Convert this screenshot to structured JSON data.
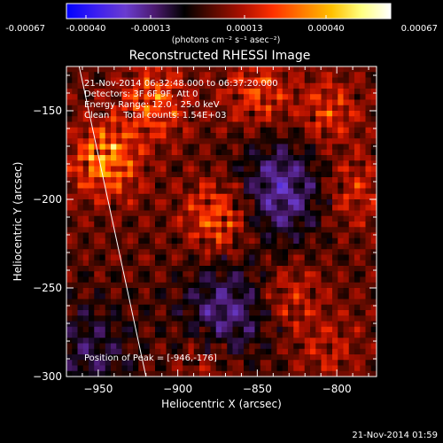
{
  "colorbar": {
    "ticks": [
      "-0.00067",
      "-0.00040",
      "-0.00013",
      "0.00013",
      "0.00040",
      "0.00067"
    ],
    "unit_label": "(photons cm⁻² s⁻¹ asec⁻²)",
    "stops": [
      "#0000ff",
      "#3b1ef0",
      "#6a3cd0",
      "#4b1a6e",
      "#000000",
      "#5a0a00",
      "#b01000",
      "#ff3000",
      "#ff7a00",
      "#ffc000",
      "#ffff80",
      "#ffffff"
    ],
    "range": [
      -0.00067,
      0.00067
    ]
  },
  "chart_data": {
    "type": "heatmap",
    "title": "Reconstructed RHESSI Image",
    "xlabel": "Heliocentric X (arcsec)",
    "ylabel": "Heliocentric Y (arcsec)",
    "xlim": [
      -970,
      -775
    ],
    "ylim": [
      -300,
      -125
    ],
    "x_ticks": [
      -950,
      -900,
      -850,
      -800
    ],
    "y_ticks": [
      -150,
      -200,
      -250,
      -300
    ],
    "x_tick_labels": [
      "−950",
      "−900",
      "−850",
      "−800"
    ],
    "y_tick_labels": [
      "−150",
      "−200",
      "−250",
      "−300"
    ],
    "info_lines": [
      "21-Nov-2014 06:32:48.000 to 06:37:20.000",
      "Detectors: 3F 6F 9F, Att 0",
      "Energy Range: 12.0 - 25.0 keV",
      "Clean     Total counts: 1.54E+03"
    ],
    "peak_label": "Position of Peak = [-946,-176]",
    "peak": [
      -946,
      -176
    ],
    "limb_line": [
      [
        -962,
        -125
      ],
      [
        -920,
        -300
      ]
    ],
    "sources": [
      {
        "x": -945,
        "y": -178,
        "peak": 0.00067
      },
      {
        "x": -915,
        "y": -145,
        "peak": 0.00048
      },
      {
        "x": -875,
        "y": -210,
        "peak": 0.0005
      },
      {
        "x": -850,
        "y": -140,
        "peak": 0.00038
      },
      {
        "x": -805,
        "y": -150,
        "peak": 0.00035
      },
      {
        "x": -790,
        "y": -195,
        "peak": 0.0003
      },
      {
        "x": -830,
        "y": -255,
        "peak": 0.00028
      },
      {
        "x": -880,
        "y": -290,
        "peak": 0.00025
      },
      {
        "x": -805,
        "y": -285,
        "peak": 0.00022
      }
    ],
    "negative_regions": [
      {
        "x": -835,
        "y": -195,
        "peak": -0.0003
      },
      {
        "x": -870,
        "y": -265,
        "peak": -0.00028
      },
      {
        "x": -955,
        "y": -285,
        "peak": -0.00018
      }
    ]
  },
  "timestamp": "21-Nov-2014 01:59"
}
